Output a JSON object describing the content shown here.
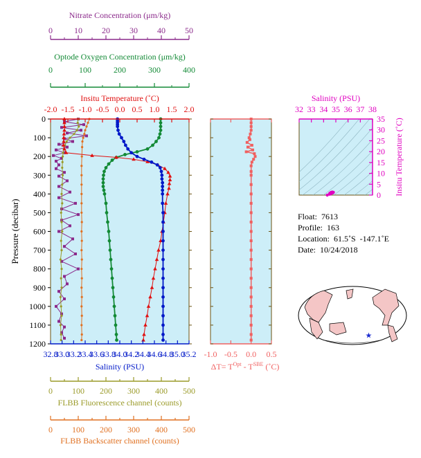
{
  "colors": {
    "nitrate": "#8b2a8b",
    "oxygen": "#138a36",
    "temperature": "#e01010",
    "salinity": "#0018c8",
    "fluorescence": "#9a9a28",
    "backscatter": "#e07020",
    "deltaT": "#f06060",
    "ts": "#e000c0",
    "panel_bg": "#cdeef8",
    "frame": "#6b5210"
  },
  "chart_data": [
    {
      "type": "line",
      "name": "main-profile",
      "ylabel": "Pressure (decibar)",
      "ylim": [
        1200,
        0
      ],
      "yticks": [
        0,
        100,
        200,
        300,
        400,
        500,
        600,
        700,
        800,
        900,
        1000,
        1100,
        1200
      ],
      "axes": {
        "nitrate": {
          "title": "Nitrate Concentration (μm/kg)",
          "range": [
            0,
            50
          ],
          "ticks": [
            "0",
            "10",
            "20",
            "30",
            "40",
            "50"
          ]
        },
        "oxygen": {
          "title": "Optode Oxygen Concentration (μm/kg)",
          "range": [
            0,
            400
          ],
          "ticks": [
            "0",
            "100",
            "200",
            "300",
            "400"
          ]
        },
        "temperature": {
          "title": "Insitu Temperature (˚C)",
          "range": [
            -2.0,
            2.0
          ],
          "ticks": [
            "-2.0",
            "-1.5",
            "-1.0",
            "-0.5",
            "0.0",
            "0.5",
            "1.0",
            "1.5",
            "2.0"
          ]
        },
        "salinity": {
          "title": "Salinity (PSU)",
          "range": [
            32.8,
            35.2
          ],
          "ticks": [
            "32.8",
            "33.0",
            "33.2",
            "33.4",
            "33.6",
            "33.8",
            "34.0",
            "34.2",
            "34.4",
            "34.6",
            "34.8",
            "35.0",
            "35.2"
          ]
        },
        "fluorescence": {
          "title": "FLBB Fluorescence channel (counts)",
          "range": [
            0,
            500
          ],
          "ticks": [
            "0",
            "50",
            "100",
            "150",
            "200",
            "250",
            "300",
            "350",
            "400",
            "450",
            "500"
          ]
        },
        "backscatter": {
          "title": "FLBB Backscatter channel (counts)",
          "range": [
            0,
            500
          ],
          "ticks": [
            "0",
            "50",
            "100",
            "150",
            "200",
            "250",
            "300",
            "350",
            "400",
            "450",
            "500"
          ]
        }
      },
      "series": {
        "salinity": [
          [
            33.96,
            0
          ],
          [
            33.96,
            10
          ],
          [
            33.96,
            20
          ],
          [
            33.96,
            30
          ],
          [
            33.96,
            40
          ],
          [
            33.97,
            60
          ],
          [
            33.99,
            80
          ],
          [
            34.03,
            100
          ],
          [
            34.07,
            120
          ],
          [
            34.1,
            140
          ],
          [
            34.14,
            160
          ],
          [
            34.2,
            180
          ],
          [
            34.3,
            200
          ],
          [
            34.42,
            215
          ],
          [
            34.55,
            230
          ],
          [
            34.65,
            245
          ],
          [
            34.7,
            260
          ],
          [
            34.72,
            280
          ],
          [
            34.73,
            300
          ],
          [
            34.73,
            320
          ],
          [
            34.74,
            340
          ],
          [
            34.74,
            360
          ],
          [
            34.74,
            380
          ],
          [
            34.74,
            400
          ],
          [
            34.74,
            450
          ],
          [
            34.75,
            500
          ],
          [
            34.75,
            550
          ],
          [
            34.75,
            600
          ],
          [
            34.75,
            650
          ],
          [
            34.75,
            700
          ],
          [
            34.75,
            750
          ],
          [
            34.75,
            800
          ],
          [
            34.75,
            850
          ],
          [
            34.75,
            900
          ],
          [
            34.75,
            950
          ],
          [
            34.75,
            1000
          ],
          [
            34.75,
            1050
          ],
          [
            34.75,
            1100
          ],
          [
            34.75,
            1150
          ],
          [
            34.75,
            1180
          ]
        ],
        "temperature": [
          [
            -1.6,
            0
          ],
          [
            -1.6,
            20
          ],
          [
            -1.6,
            40
          ],
          [
            -1.6,
            60
          ],
          [
            -1.61,
            80
          ],
          [
            -1.62,
            100
          ],
          [
            -1.62,
            120
          ],
          [
            -1.63,
            140
          ],
          [
            -1.6,
            160
          ],
          [
            -1.55,
            180
          ],
          [
            -0.8,
            195
          ],
          [
            -0.1,
            205
          ],
          [
            0.4,
            215
          ],
          [
            0.8,
            228
          ],
          [
            1.1,
            245
          ],
          [
            1.3,
            265
          ],
          [
            1.4,
            285
          ],
          [
            1.45,
            305
          ],
          [
            1.45,
            325
          ],
          [
            1.43,
            345
          ],
          [
            1.42,
            370
          ],
          [
            1.38,
            400
          ],
          [
            1.33,
            450
          ],
          [
            1.3,
            500
          ],
          [
            1.26,
            550
          ],
          [
            1.22,
            600
          ],
          [
            1.18,
            650
          ],
          [
            1.12,
            700
          ],
          [
            1.07,
            750
          ],
          [
            1.02,
            800
          ],
          [
            0.97,
            850
          ],
          [
            0.93,
            900
          ],
          [
            0.88,
            950
          ],
          [
            0.83,
            1000
          ],
          [
            0.79,
            1050
          ],
          [
            0.74,
            1100
          ],
          [
            0.7,
            1150
          ],
          [
            0.68,
            1180
          ]
        ],
        "oxygen": [
          [
            318,
            0
          ],
          [
            318,
            20
          ],
          [
            318,
            40
          ],
          [
            318,
            60
          ],
          [
            316,
            80
          ],
          [
            313,
            100
          ],
          [
            305,
            120
          ],
          [
            295,
            140
          ],
          [
            280,
            160
          ],
          [
            250,
            175
          ],
          [
            215,
            190
          ],
          [
            190,
            205
          ],
          [
            178,
            220
          ],
          [
            168,
            240
          ],
          [
            160,
            260
          ],
          [
            155,
            280
          ],
          [
            153,
            300
          ],
          [
            152,
            320
          ],
          [
            152,
            340
          ],
          [
            152,
            360
          ],
          [
            154,
            380
          ],
          [
            156,
            400
          ],
          [
            160,
            450
          ],
          [
            162,
            500
          ],
          [
            165,
            550
          ],
          [
            168,
            600
          ],
          [
            170,
            650
          ],
          [
            172,
            700
          ],
          [
            174,
            750
          ],
          [
            176,
            800
          ],
          [
            178,
            850
          ],
          [
            180,
            900
          ],
          [
            182,
            950
          ],
          [
            184,
            1000
          ],
          [
            186,
            1050
          ],
          [
            188,
            1100
          ],
          [
            190,
            1150
          ],
          [
            191,
            1180
          ]
        ],
        "nitrate": [
          [
            10,
            0
          ],
          [
            5,
            15
          ],
          [
            12,
            30
          ],
          [
            4,
            45
          ],
          [
            11,
            60
          ],
          [
            6,
            75
          ],
          [
            13,
            90
          ],
          [
            5,
            105
          ],
          [
            8,
            120
          ],
          [
            3,
            135
          ],
          [
            6,
            150
          ],
          [
            2,
            165
          ],
          [
            5,
            180
          ],
          [
            1,
            195
          ],
          [
            4,
            210
          ],
          [
            2,
            225
          ],
          [
            3,
            245
          ],
          [
            2,
            265
          ],
          [
            5,
            285
          ],
          [
            3,
            305
          ],
          [
            6,
            330
          ],
          [
            3,
            360
          ],
          [
            7,
            390
          ],
          [
            3,
            420
          ],
          [
            9,
            450
          ],
          [
            4,
            480
          ],
          [
            10,
            510
          ],
          [
            4,
            540
          ],
          [
            7,
            570
          ],
          [
            3,
            600
          ],
          [
            8,
            640
          ],
          [
            5,
            680
          ],
          [
            9,
            720
          ],
          [
            4,
            760
          ],
          [
            10,
            800
          ],
          [
            5,
            840
          ],
          [
            6,
            880
          ],
          [
            3,
            920
          ],
          [
            5,
            960
          ],
          [
            2,
            1000
          ],
          [
            4,
            1040
          ],
          [
            3,
            1080
          ],
          [
            5,
            1110
          ],
          [
            4,
            1140
          ],
          [
            5,
            1170
          ]
        ],
        "fluorescence": [
          [
            100,
            0
          ],
          [
            98,
            20
          ],
          [
            102,
            40
          ],
          [
            95,
            60
          ],
          [
            85,
            80
          ],
          [
            70,
            100
          ],
          [
            58,
            120
          ],
          [
            52,
            140
          ],
          [
            48,
            160
          ],
          [
            45,
            180
          ],
          [
            44,
            200
          ],
          [
            43,
            230
          ],
          [
            42,
            260
          ],
          [
            44,
            300
          ],
          [
            42,
            350
          ],
          [
            40,
            400
          ],
          [
            42,
            450
          ],
          [
            38,
            500
          ],
          [
            40,
            550
          ],
          [
            42,
            600
          ],
          [
            38,
            650
          ],
          [
            40,
            700
          ],
          [
            36,
            750
          ],
          [
            40,
            800
          ],
          [
            38,
            850
          ],
          [
            40,
            900
          ],
          [
            36,
            950
          ],
          [
            38,
            1000
          ],
          [
            40,
            1050
          ],
          [
            36,
            1100
          ],
          [
            38,
            1150
          ],
          [
            38,
            1180
          ]
        ],
        "backscatter": [
          [
            140,
            0
          ],
          [
            135,
            20
          ],
          [
            130,
            40
          ],
          [
            125,
            60
          ],
          [
            122,
            80
          ],
          [
            118,
            100
          ],
          [
            115,
            120
          ],
          [
            114,
            150
          ],
          [
            113,
            200
          ],
          [
            112,
            250
          ],
          [
            112,
            300
          ],
          [
            112,
            350
          ],
          [
            112,
            400
          ],
          [
            112,
            450
          ],
          [
            112,
            500
          ],
          [
            113,
            550
          ],
          [
            112,
            600
          ],
          [
            113,
            650
          ],
          [
            112,
            700
          ],
          [
            113,
            750
          ],
          [
            112,
            800
          ],
          [
            113,
            850
          ],
          [
            112,
            900
          ],
          [
            113,
            950
          ],
          [
            112,
            1000
          ],
          [
            113,
            1050
          ],
          [
            112,
            1100
          ],
          [
            113,
            1150
          ],
          [
            112,
            1180
          ]
        ]
      }
    },
    {
      "type": "line",
      "name": "delta-t",
      "xlabel_parts": [
        "ΔT= T",
        "Opt",
        " - T",
        "SBE",
        " (˚C)"
      ],
      "xlim": [
        -1.0,
        0.5
      ],
      "xticks": [
        "-1.0",
        "-0.5",
        "0.0",
        "0.5"
      ],
      "ylim": [
        1200,
        0
      ],
      "values": [
        [
          0.0,
          0
        ],
        [
          0.0,
          20
        ],
        [
          0.0,
          40
        ],
        [
          0.0,
          60
        ],
        [
          -0.02,
          80
        ],
        [
          -0.05,
          100
        ],
        [
          -0.03,
          110
        ],
        [
          -0.1,
          125
        ],
        [
          0.02,
          140
        ],
        [
          -0.08,
          150
        ],
        [
          0.04,
          165
        ],
        [
          -0.12,
          175
        ],
        [
          0.08,
          185
        ],
        [
          0.1,
          200
        ],
        [
          0.06,
          215
        ],
        [
          0.02,
          230
        ],
        [
          0.0,
          250
        ],
        [
          0.0,
          280
        ],
        [
          0.0,
          300
        ],
        [
          0.0,
          350
        ],
        [
          0.0,
          400
        ],
        [
          0.0,
          450
        ],
        [
          0.0,
          500
        ],
        [
          0.0,
          550
        ],
        [
          0.0,
          600
        ],
        [
          0.0,
          650
        ],
        [
          0.0,
          700
        ],
        [
          0.0,
          750
        ],
        [
          0.0,
          800
        ],
        [
          0.0,
          850
        ],
        [
          0.0,
          900
        ],
        [
          0.0,
          950
        ],
        [
          0.0,
          1000
        ],
        [
          0.0,
          1050
        ],
        [
          0.0,
          1100
        ],
        [
          0.0,
          1150
        ],
        [
          0.0,
          1180
        ]
      ]
    },
    {
      "type": "scatter",
      "name": "ts-diagram",
      "title": "Salinity (PSU)",
      "ylabel": "Insitu Temperature (˚C)",
      "xlim": [
        32,
        38
      ],
      "ylim": [
        0,
        35
      ],
      "xticks": [
        "32",
        "33",
        "34",
        "35",
        "36",
        "37",
        "38"
      ],
      "yticks": [
        "0",
        "5",
        "10",
        "15",
        "20",
        "25",
        "30",
        "35"
      ],
      "values": [
        [
          34.5,
          0.8
        ],
        [
          34.6,
          1.2
        ],
        [
          34.7,
          1.4
        ],
        [
          34.8,
          1.3
        ],
        [
          34.5,
          0.4
        ],
        [
          34.3,
          0.0
        ],
        [
          34.6,
          0.6
        ],
        [
          34.75,
          1.0
        ]
      ]
    }
  ],
  "info": {
    "float_label": "Float:  7613",
    "profile_label": "Profile:  163",
    "location_label": "Location:  61.5˚S  -147.1˚E",
    "date_label": "Date:  10/24/2018"
  },
  "map": {
    "marker_lon": -147.1,
    "marker_lat": -61.5
  }
}
